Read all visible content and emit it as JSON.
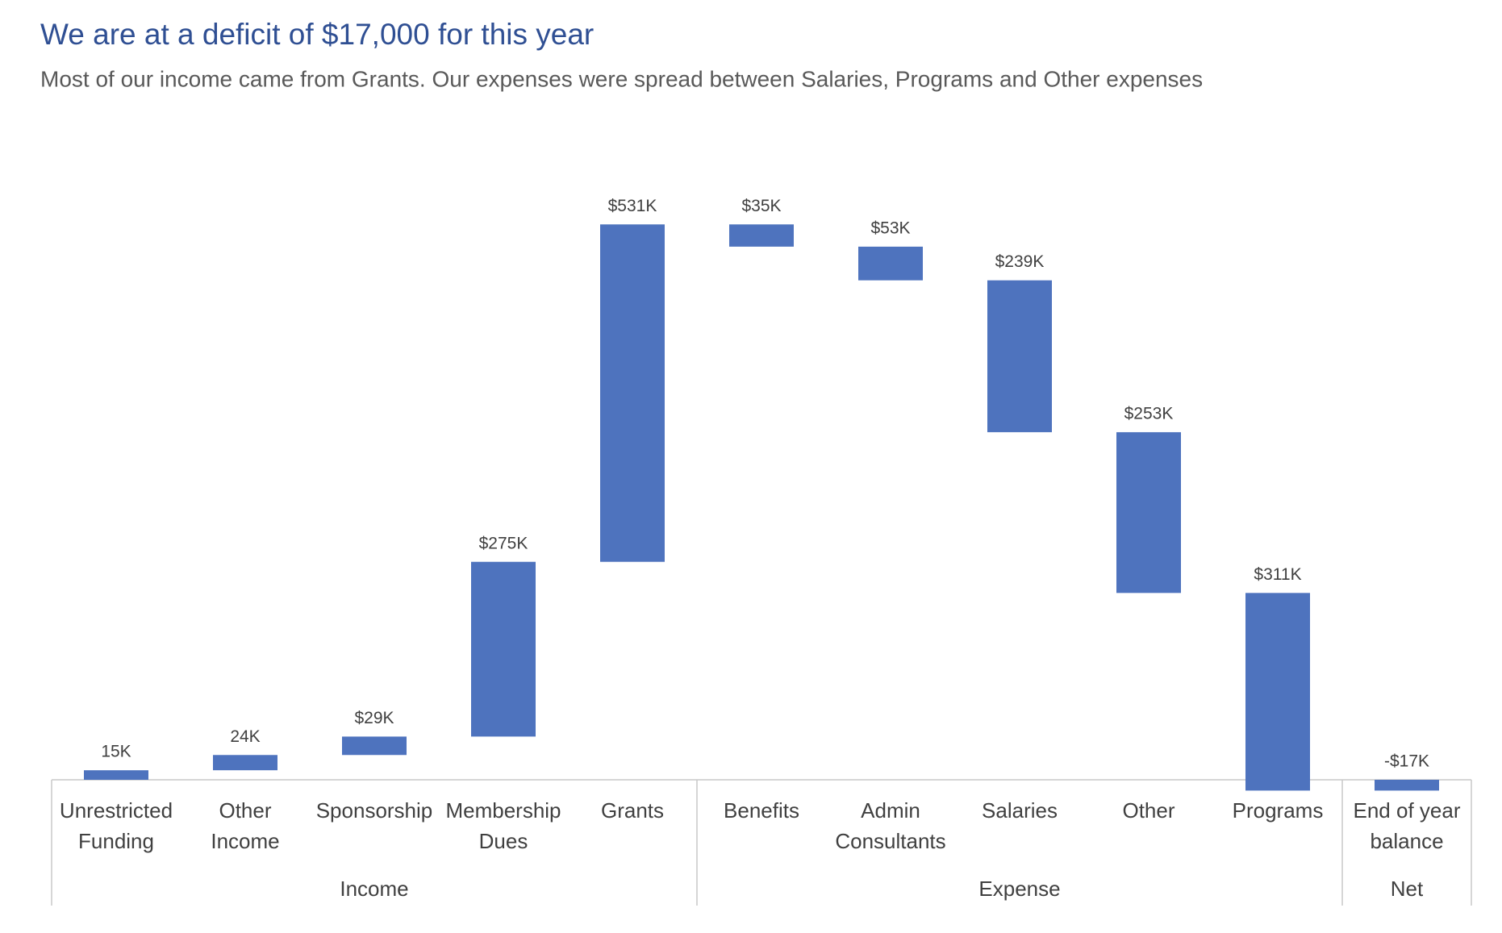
{
  "chart_data": {
    "type": "waterfall",
    "title": "We are at a deficit of $17,000 for this year",
    "subtitle": "Most of our income came from Grants. Our expenses were spread between Salaries, Programs and Other expenses",
    "categories": [
      "Unrestricted\nFunding",
      "Other\nIncome",
      "Sponsorship",
      "Membership\nDues",
      "Grants",
      "Benefits",
      "Admin\nConsultants",
      "Salaries",
      "Other",
      "Programs",
      "End of year\nbalance"
    ],
    "values": [
      15,
      24,
      29,
      275,
      531,
      -35,
      -53,
      -239,
      -253,
      -311,
      -17
    ],
    "value_labels": [
      "15K",
      "24K",
      "$29K",
      "$275K",
      "$531K",
      "$35K",
      "$53K",
      "$239K",
      "$253K",
      "$311K",
      "-$17K"
    ],
    "total_indices": [
      10
    ],
    "groups": [
      "Income",
      "Expense",
      "Net"
    ],
    "group_sizes": [
      5,
      5,
      1
    ],
    "color": "#4e73be"
  }
}
